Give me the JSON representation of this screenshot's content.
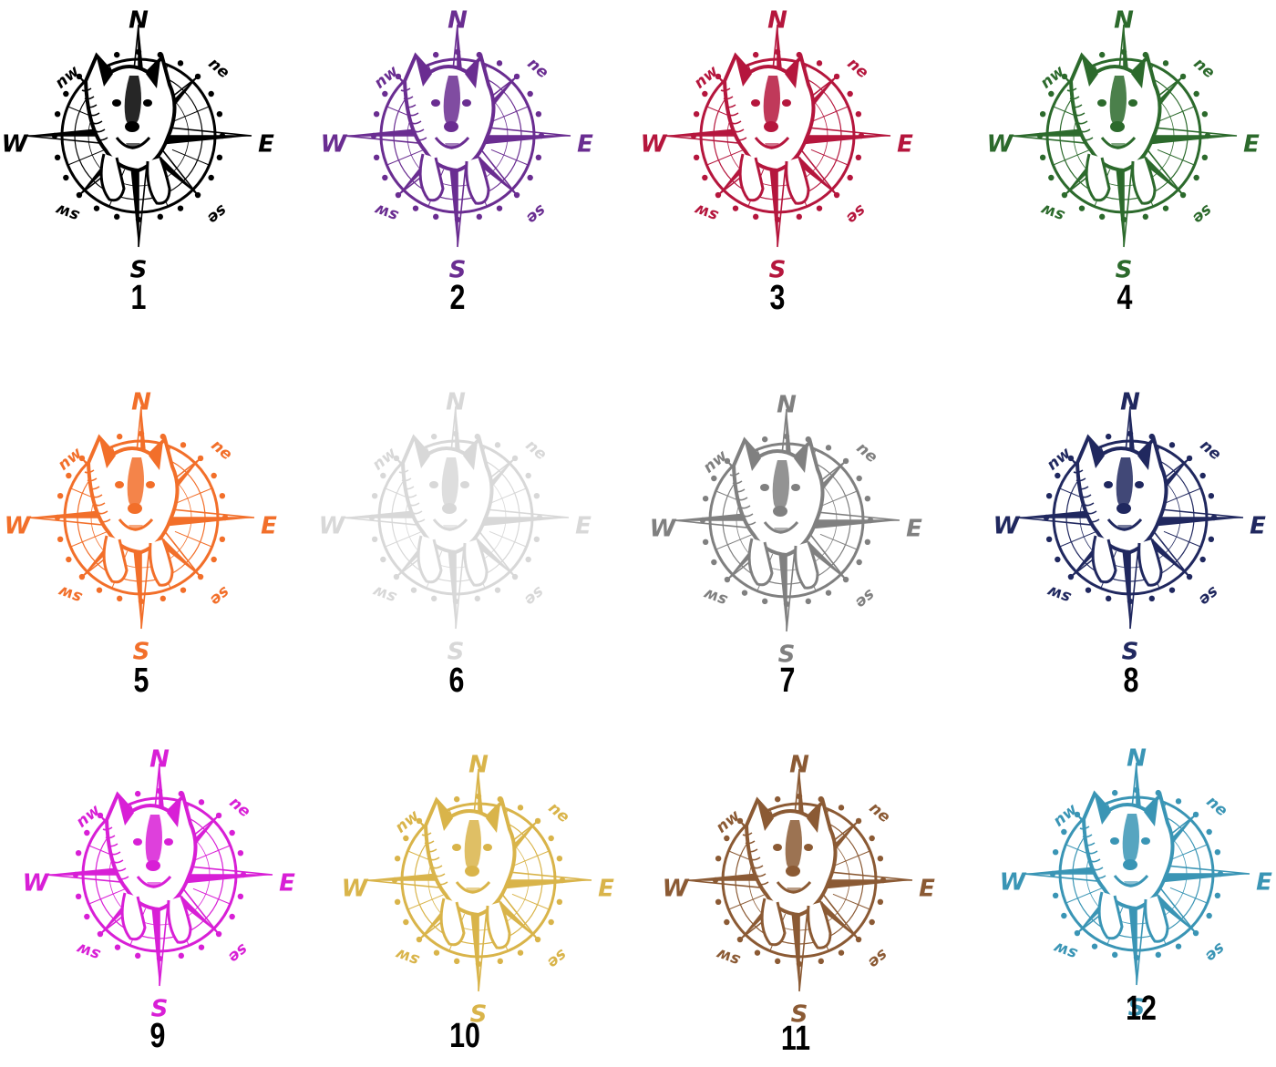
{
  "directions": {
    "n": "N",
    "s": "S",
    "e": "E",
    "w": "W",
    "nw": "nw",
    "ne": "ne",
    "sw": "sw",
    "se": "se"
  },
  "variants": [
    {
      "label": "1",
      "color": "#000000"
    },
    {
      "label": "2",
      "color": "#6a2d91"
    },
    {
      "label": "3",
      "color": "#b5163d"
    },
    {
      "label": "4",
      "color": "#2c6a2c"
    },
    {
      "label": "5",
      "color": "#f26f2a"
    },
    {
      "label": "6",
      "color": "#d8d8d8"
    },
    {
      "label": "7",
      "color": "#808080"
    },
    {
      "label": "8",
      "color": "#20285f"
    },
    {
      "label": "9",
      "color": "#d81fd6"
    },
    {
      "label": "10",
      "color": "#d9b44a"
    },
    {
      "label": "11",
      "color": "#8b5a34"
    },
    {
      "label": "12",
      "color": "#3a95b5"
    }
  ]
}
